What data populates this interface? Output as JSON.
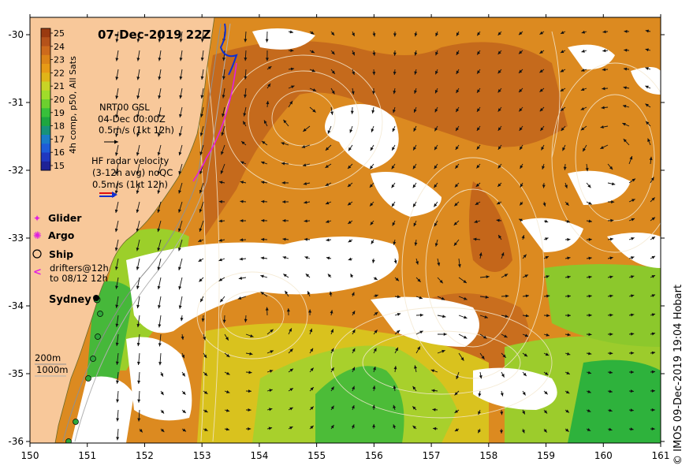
{
  "title": "07-Dec-2019 22Z",
  "credit": "© IMOS 09-Dec-2019 19:04 Hobart",
  "axes": {
    "x_ticks": [
      "150",
      "151",
      "152",
      "153",
      "154",
      "155",
      "156",
      "157",
      "158",
      "159",
      "160",
      "161"
    ],
    "y_ticks": [
      "-30",
      "-31",
      "-32",
      "-33",
      "-34",
      "-35",
      "-36"
    ]
  },
  "colorbar": {
    "label": "4h comp, p50, All Sats",
    "values": [
      "25",
      "24",
      "23",
      "22",
      "21",
      "20",
      "19",
      "18",
      "17",
      "16",
      "15"
    ],
    "colors": [
      "#9a3a10",
      "#b5521a",
      "#cd6a1c",
      "#dc8418",
      "#e79a16",
      "#e0b418",
      "#c8d426",
      "#a0dc2a",
      "#6cd02e",
      "#38c03a",
      "#1ea640",
      "#17927a",
      "#1a7cc8",
      "#1e5cd8",
      "#2038c0",
      "#1e2296"
    ]
  },
  "legend": {
    "nrt": {
      "line1": "NRT00 GSL",
      "line2": "04-Dec 00:00Z",
      "line3": "0.5m/s (1kt 12h)"
    },
    "hf": {
      "line1": "HF radar velocity",
      "line2": "(3-12h avg) noQC",
      "line3": "0.5m/s (1kt 12h)"
    },
    "glider": "Glider",
    "argo": "Argo",
    "ship": "Ship",
    "drifters1": "drifters@12h",
    "drifters2": "to 08/12 12h"
  },
  "places": {
    "sydney": "Sydney"
  },
  "isobaths": {
    "a": "200m",
    "b": "1000m"
  },
  "colors": {
    "land": "#f8c89a",
    "cloud": "#ffffff",
    "warm": "#d98a22",
    "warm_dark": "#c2671c",
    "green": "#9acc2a",
    "deep_green": "#28b43a"
  }
}
